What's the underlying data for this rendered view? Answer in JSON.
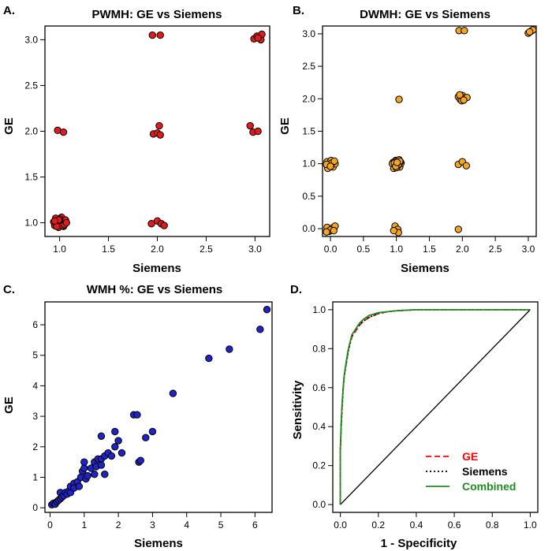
{
  "chart_data": [
    {
      "panel": "A.",
      "type": "scatter",
      "title": "PWMH: GE vs Siemens",
      "xlabel": "Siemens",
      "ylabel": "GE",
      "xlim": [
        0.85,
        3.15
      ],
      "ylim": [
        0.85,
        3.15
      ],
      "xticks": [
        "1.0",
        "1.5",
        "2.0",
        "2.5",
        "3.0"
      ],
      "xtick_values": [
        1.0,
        1.5,
        2.0,
        2.5,
        3.0
      ],
      "yticks": [
        "1.0",
        "1.5",
        "2.0",
        "2.5",
        "3.0"
      ],
      "ytick_values": [
        1.0,
        1.5,
        2.0,
        2.5,
        3.0
      ],
      "point_color": "#e41a1c",
      "points": [
        [
          0.95,
          0.97
        ],
        [
          0.97,
          1.02
        ],
        [
          0.99,
          0.95
        ],
        [
          1.01,
          1.04
        ],
        [
          1.03,
          0.99
        ],
        [
          1.05,
          1.01
        ],
        [
          0.96,
          1.05
        ],
        [
          1.0,
          0.98
        ],
        [
          1.02,
          1.06
        ],
        [
          1.04,
          0.96
        ],
        [
          0.98,
          1.0
        ],
        [
          1.06,
          1.03
        ],
        [
          0.94,
          1.01
        ],
        [
          1.0,
          1.04
        ],
        [
          1.03,
          0.97
        ],
        [
          0.97,
          0.96
        ],
        [
          1.05,
          0.98
        ],
        [
          0.99,
          1.03
        ],
        [
          1.07,
          1.0
        ],
        [
          0.95,
          1.02
        ],
        [
          0.98,
          2.01
        ],
        [
          1.04,
          1.99
        ],
        [
          1.95,
          3.05
        ],
        [
          2.03,
          3.05
        ],
        [
          1.94,
          0.99
        ],
        [
          2.0,
          1.02
        ],
        [
          2.04,
          0.99
        ],
        [
          2.07,
          0.97
        ],
        [
          1.96,
          1.97
        ],
        [
          2.0,
          1.98
        ],
        [
          2.03,
          1.96
        ],
        [
          2.02,
          2.06
        ],
        [
          2.95,
          2.06
        ],
        [
          2.98,
          1.99
        ],
        [
          3.03,
          2.0
        ],
        [
          2.99,
          3.01
        ],
        [
          3.02,
          3.04
        ],
        [
          3.06,
          3.0
        ],
        [
          3.07,
          3.06
        ],
        [
          3.03,
          3.02
        ]
      ]
    },
    {
      "panel": "B.",
      "type": "scatter",
      "title": "DWMH: GE vs Siemens",
      "xlabel": "Siemens",
      "ylabel": "GE",
      "xlim": [
        -0.12,
        3.12
      ],
      "ylim": [
        -0.12,
        3.12
      ],
      "xticks": [
        "0.0",
        "0.5",
        "1.0",
        "1.5",
        "2.0",
        "2.5",
        "3.0"
      ],
      "xtick_values": [
        0.0,
        0.5,
        1.0,
        1.5,
        2.0,
        2.5,
        3.0
      ],
      "yticks": [
        "0.0",
        "0.5",
        "1.0",
        "1.5",
        "2.0",
        "2.5",
        "3.0"
      ],
      "ytick_values": [
        0.0,
        0.5,
        1.0,
        1.5,
        2.0,
        2.5,
        3.0
      ],
      "point_color": "#f5a623",
      "points": [
        [
          -0.05,
          1.03
        ],
        [
          -0.02,
          0.98
        ],
        [
          0.01,
          1.05
        ],
        [
          0.04,
          0.95
        ],
        [
          0.07,
          1.0
        ],
        [
          -0.04,
          0.93
        ],
        [
          0.02,
          1.01
        ],
        [
          0.06,
          1.04
        ],
        [
          -0.06,
          0.99
        ],
        [
          0.0,
          0.96
        ],
        [
          -0.05,
          0.02
        ],
        [
          -0.02,
          -0.04
        ],
        [
          0.03,
          0.01
        ],
        [
          0.07,
          0.04
        ],
        [
          0.0,
          -0.02
        ],
        [
          -0.06,
          -0.05
        ],
        [
          0.05,
          -0.03
        ],
        [
          0.95,
          1.02
        ],
        [
          0.97,
          0.96
        ],
        [
          0.99,
          1.05
        ],
        [
          1.01,
          0.99
        ],
        [
          1.03,
          1.03
        ],
        [
          1.05,
          0.95
        ],
        [
          1.07,
          1.01
        ],
        [
          0.96,
          0.93
        ],
        [
          1.0,
          1.04
        ],
        [
          1.02,
          0.97
        ],
        [
          1.04,
          1.06
        ],
        [
          0.94,
          1.0
        ],
        [
          0.98,
          0.98
        ],
        [
          1.06,
          1.03
        ],
        [
          1.0,
          0.94
        ],
        [
          0.97,
          1.01
        ],
        [
          1.03,
          0.99
        ],
        [
          1.05,
          1.04
        ],
        [
          0.99,
          0.96
        ],
        [
          1.01,
          1.02
        ],
        [
          1.04,
          1.99
        ],
        [
          0.98,
          0.04
        ],
        [
          1.02,
          -0.01
        ],
        [
          1.03,
          -0.06
        ],
        [
          0.96,
          -0.03
        ],
        [
          1.94,
          0.99
        ],
        [
          2.0,
          1.03
        ],
        [
          2.06,
          0.97
        ],
        [
          1.94,
          -0.01
        ],
        [
          1.95,
          3.05
        ],
        [
          2.03,
          3.05
        ],
        [
          1.94,
          2.03
        ],
        [
          1.97,
          1.99
        ],
        [
          2.0,
          2.05
        ],
        [
          2.03,
          2.01
        ],
        [
          2.07,
          2.02
        ],
        [
          1.99,
          1.97
        ],
        [
          1.96,
          2.06
        ],
        [
          2.02,
          1.98
        ],
        [
          3.0,
          3.01
        ],
        [
          3.04,
          3.04
        ],
        [
          3.07,
          3.06
        ],
        [
          3.02,
          3.03
        ]
      ]
    },
    {
      "panel": "C.",
      "type": "scatter",
      "title": "WMH %: GE vs Siemens",
      "xlabel": "Siemens",
      "ylabel": "GE",
      "xlim": [
        -0.15,
        6.5
      ],
      "ylim": [
        -0.15,
        6.75
      ],
      "xticks": [
        "0",
        "1",
        "2",
        "3",
        "4",
        "5",
        "6"
      ],
      "xtick_values": [
        0,
        1,
        2,
        3,
        4,
        5,
        6
      ],
      "yticks": [
        "0",
        "1",
        "2",
        "3",
        "4",
        "5",
        "6"
      ],
      "ytick_values": [
        0,
        1,
        2,
        3,
        4,
        5,
        6
      ],
      "point_color": "#1f23c8",
      "points": [
        [
          0.05,
          0.1
        ],
        [
          0.1,
          0.15
        ],
        [
          0.15,
          0.12
        ],
        [
          0.2,
          0.2
        ],
        [
          0.25,
          0.25
        ],
        [
          0.3,
          0.3
        ],
        [
          0.3,
          0.5
        ],
        [
          0.35,
          0.35
        ],
        [
          0.4,
          0.4
        ],
        [
          0.45,
          0.5
        ],
        [
          0.5,
          0.45
        ],
        [
          0.55,
          0.55
        ],
        [
          0.6,
          0.5
        ],
        [
          0.6,
          0.7
        ],
        [
          0.7,
          0.8
        ],
        [
          0.7,
          0.65
        ],
        [
          0.8,
          0.85
        ],
        [
          0.85,
          0.7
        ],
        [
          0.9,
          1.0
        ],
        [
          0.95,
          1.2
        ],
        [
          1.0,
          1.3
        ],
        [
          1.0,
          1.5
        ],
        [
          1.05,
          0.95
        ],
        [
          1.1,
          1.05
        ],
        [
          1.2,
          1.3
        ],
        [
          1.3,
          1.1
        ],
        [
          1.3,
          1.5
        ],
        [
          1.35,
          1.35
        ],
        [
          1.4,
          1.6
        ],
        [
          1.5,
          1.6
        ],
        [
          1.5,
          1.4
        ],
        [
          1.6,
          1.1
        ],
        [
          1.6,
          1.7
        ],
        [
          1.7,
          1.8
        ],
        [
          1.8,
          1.7
        ],
        [
          1.9,
          2.0
        ],
        [
          2.0,
          2.2
        ],
        [
          2.1,
          1.8
        ],
        [
          1.5,
          2.35
        ],
        [
          1.9,
          2.5
        ],
        [
          2.45,
          3.05
        ],
        [
          2.55,
          3.05
        ],
        [
          2.6,
          1.5
        ],
        [
          2.65,
          1.55
        ],
        [
          2.8,
          2.3
        ],
        [
          3.0,
          2.5
        ],
        [
          3.6,
          3.75
        ],
        [
          4.65,
          4.9
        ],
        [
          5.25,
          5.2
        ],
        [
          6.15,
          5.85
        ],
        [
          6.35,
          6.5
        ]
      ]
    },
    {
      "panel": "D.",
      "type": "line",
      "title": "",
      "xlabel": "1 - Specificity",
      "ylabel": "Sensitivity",
      "xlim": [
        -0.04,
        1.04
      ],
      "ylim": [
        -0.04,
        1.04
      ],
      "xticks": [
        "0.0",
        "0.2",
        "0.4",
        "0.6",
        "0.8",
        "1.0"
      ],
      "xtick_values": [
        0.0,
        0.2,
        0.4,
        0.6,
        0.8,
        1.0
      ],
      "yticks": [
        "0.0",
        "0.2",
        "0.4",
        "0.6",
        "0.8",
        "1.0"
      ],
      "ytick_values": [
        0.0,
        0.2,
        0.4,
        0.6,
        0.8,
        1.0
      ],
      "reference_line": [
        [
          0,
          0
        ],
        [
          1,
          1
        ]
      ],
      "legend_position": "bottom-right",
      "series": [
        {
          "name": "GE",
          "color": "#ff0000",
          "dash": "dashed",
          "x": [
            0.0,
            0.0,
            0.005,
            0.01,
            0.015,
            0.02,
            0.03,
            0.04,
            0.05,
            0.06,
            0.08,
            0.1,
            0.12,
            0.15,
            0.2,
            0.25,
            0.3,
            0.4,
            1.0
          ],
          "y": [
            0.0,
            0.28,
            0.42,
            0.52,
            0.6,
            0.66,
            0.72,
            0.78,
            0.83,
            0.86,
            0.89,
            0.92,
            0.94,
            0.96,
            0.98,
            0.99,
            0.995,
            1.0,
            1.0
          ]
        },
        {
          "name": "Siemens",
          "color": "#000000",
          "dash": "dotted",
          "x": [
            0.0,
            0.0,
            0.005,
            0.01,
            0.015,
            0.02,
            0.03,
            0.04,
            0.05,
            0.06,
            0.08,
            0.1,
            0.12,
            0.15,
            0.2,
            0.25,
            0.3,
            0.4,
            1.0
          ],
          "y": [
            0.0,
            0.27,
            0.41,
            0.51,
            0.59,
            0.65,
            0.72,
            0.78,
            0.82,
            0.86,
            0.9,
            0.92,
            0.94,
            0.96,
            0.98,
            0.99,
            0.995,
            1.0,
            1.0
          ]
        },
        {
          "name": "Combined",
          "color": "#228B22",
          "dash": "solid",
          "x": [
            0.0,
            0.0,
            0.005,
            0.01,
            0.015,
            0.02,
            0.03,
            0.04,
            0.05,
            0.06,
            0.08,
            0.1,
            0.12,
            0.15,
            0.2,
            0.25,
            0.3,
            0.4,
            1.0
          ],
          "y": [
            0.0,
            0.29,
            0.43,
            0.53,
            0.6,
            0.66,
            0.73,
            0.79,
            0.83,
            0.87,
            0.9,
            0.93,
            0.95,
            0.97,
            0.985,
            0.99,
            0.995,
            1.0,
            1.0
          ]
        }
      ],
      "legend_text_colors": [
        "#ff0000",
        "#000000",
        "#228B22"
      ]
    }
  ]
}
